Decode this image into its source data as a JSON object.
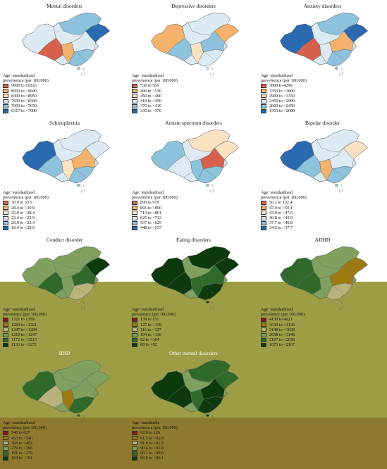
{
  "legend_title_line1": "Age−standardized",
  "legend_title_line2": "preveleence (per 100,000)",
  "panels": [
    {
      "title": "Mental disorders",
      "legend_title": [
        "Age−standardized",
        "preveleence (per 100,000)"
      ],
      "legend": [
        {
          "label": "9600 to 10226",
          "color": "#d7604d"
        },
        {
          "label": "8950 to <9600",
          "color": "#f4b16c"
        },
        {
          "label": "8300 to <8950",
          "color": "#fbe2c1"
        },
        {
          "label": "7650 to <8300",
          "color": "#dcebf3"
        },
        {
          "label": "7000 to <7650",
          "color": "#8cc2dc"
        },
        {
          "label": "6317 to <7000",
          "color": "#2a6ab0"
        }
      ]
    },
    {
      "title": "Depressive disorders",
      "legend_title": [
        "Age−standardized",
        "preveleence (per 100,000)"
      ],
      "legend": [
        {
          "label": "530 to 569",
          "color": "#d7604d"
        },
        {
          "label": "490 to <530",
          "color": "#f4b16c"
        },
        {
          "label": "450 to <490",
          "color": "#fbe2c1"
        },
        {
          "label": "410 to <450",
          "color": "#dcebf3"
        },
        {
          "label": "370 to <410",
          "color": "#8cc2dc"
        },
        {
          "label": "335 to <370",
          "color": "#2a6ab0"
        }
      ]
    },
    {
      "title": "Anxiety disorders",
      "legend_title": [
        "Age−standardized",
        "preveleence (per 100,000)"
      ],
      "legend": [
        {
          "label": "3800 to 4299",
          "color": "#d7604d"
        },
        {
          "label": "3350 to <3800",
          "color": "#f4b16c"
        },
        {
          "label": "2900 to <3350",
          "color": "#fbe2c1"
        },
        {
          "label": "2450 to <2900",
          "color": "#dcebf3"
        },
        {
          "label": "2000 to <2450",
          "color": "#8cc2dc"
        },
        {
          "label": "1553 to <2000",
          "color": "#2a6ab0"
        }
      ]
    },
    {
      "title": "Schizophrenia",
      "legend_title": [
        "Age−standardized",
        "preveleence (per 100,000)"
      ],
      "legend": [
        {
          "label": "30.9 to 33.5",
          "color": "#d7604d"
        },
        {
          "label": "28.4 to <30.9",
          "color": "#f4b16c"
        },
        {
          "label": "25.9 to <28.4",
          "color": "#fbe2c1"
        },
        {
          "label": "23.4 to <25.9",
          "color": "#dcebf3"
        },
        {
          "label": "20.9 to <23.4",
          "color": "#8cc2dc"
        },
        {
          "label": "18.4 to <20.9",
          "color": "#2a6ab0"
        }
      ]
    },
    {
      "title": "Autism spectrum disorders",
      "legend_title": [
        "Age−standardized",
        "preveleence (per 100,000)"
      ],
      "legend": [
        {
          "label": "890 to 979",
          "color": "#d7604d"
        },
        {
          "label": "801 to <890",
          "color": "#f4b16c"
        },
        {
          "label": "713 to <801",
          "color": "#fbe2c1"
        },
        {
          "label": "625 to <713",
          "color": "#dcebf3"
        },
        {
          "label": "537 to <625",
          "color": "#8cc2dc"
        },
        {
          "label": "448 to <537",
          "color": "#2a6ab0"
        }
      ]
    },
    {
      "title": "Bipolar disorder",
      "legend_title": [
        "Age−standardized",
        "preveleence (per 100,000)"
      ],
      "legend": [
        {
          "label": "50.1 to 132.4",
          "color": "#d7604d"
        },
        {
          "label": "47.0 to <50.1",
          "color": "#f4b16c"
        },
        {
          "label": "43.9 to <47.0",
          "color": "#fbe2c1"
        },
        {
          "label": "40.8 to <43.9",
          "color": "#dcebf3"
        },
        {
          "label": "37.7 to <40.8",
          "color": "#8cc2dc"
        },
        {
          "label": "34.6 to <37.7",
          "color": "#2a6ab0"
        }
      ]
    },
    {
      "title": "Conduct disorder",
      "legend_title": [
        "Age−standardized",
        "prevalence (per 100,000)"
      ],
      "legend": [
        {
          "label": "1321 to 1359",
          "color": "#8b1a10"
        },
        {
          "label": "1284 to <1321",
          "color": "#9c7a10"
        },
        {
          "label": "1247 to <1284",
          "color": "#b8b37a"
        },
        {
          "label": "1210 to <1247",
          "color": "#7fa05e"
        },
        {
          "label": "1172 to <1210",
          "color": "#2f6a2a"
        },
        {
          "label": "1133 to <1172",
          "color": "#0d3a0d"
        }
      ]
    },
    {
      "title": "Eating disorders",
      "legend_title": [
        "Age−standardized",
        "prevalence (per 100,000)"
      ],
      "legend": [
        {
          "label": "139 to 151",
          "color": "#8b1a10"
        },
        {
          "label": "127 to <139",
          "color": "#9c7a10"
        },
        {
          "label": "116 to <127",
          "color": "#b8b37a"
        },
        {
          "label": "104 to <116",
          "color": "#7fa05e"
        },
        {
          "label": "92 to <104",
          "color": "#2f6a2a"
        },
        {
          "label": "80 to <92",
          "color": "#0d3a0d"
        }
      ]
    },
    {
      "title": "ADHD",
      "legend_title": [
        "Age−standardized",
        "prevalence (per 100,000)"
      ],
      "legend": [
        {
          "label": "4130 to 4621",
          "color": "#8b1a10"
        },
        {
          "label": "3639 to <4130",
          "color": "#9c7a10"
        },
        {
          "label": "3148 to <3639",
          "color": "#b8b37a"
        },
        {
          "label": "2658 to <3148",
          "color": "#7fa05e"
        },
        {
          "label": "2167 to <2658",
          "color": "#2f6a2a"
        },
        {
          "label": "1673 to <2167",
          "color": "#0d3a0d"
        }
      ]
    },
    {
      "title": "IDID",
      "legend_title": [
        "Age−standardized",
        "prevalence (per 100,000)"
      ],
      "legend": [
        {
          "label": "540 to 627",
          "color": "#8b1a10"
        },
        {
          "label": "453 to <540",
          "color": "#9c7a10"
        },
        {
          "label": "366 to <453",
          "color": "#b8b37a"
        },
        {
          "label": "279 to <366",
          "color": "#7fa05e"
        },
        {
          "label": "191 to <279",
          "color": "#2f6a2a"
        },
        {
          "label": "104 to <191",
          "color": "#0d3a0d"
        }
      ]
    },
    {
      "title": "Other mental disorders",
      "legend_title": [
        "Age−standardiz",
        "preveleence (per 100,000)"
      ],
      "legend": [
        {
          "label": "92.0 to 120",
          "color": "#8b1a10"
        },
        {
          "label": "91.5 to <92.0",
          "color": "#9c7a10"
        },
        {
          "label": "91.0 to <91.5",
          "color": "#b8b37a"
        },
        {
          "label": "90.6 to <91.0",
          "color": "#7fa05e"
        },
        {
          "label": "90.1 to <90.6",
          "color": "#2f6a2a"
        },
        {
          "label": "89.6 to <90.1",
          "color": "#0d3a0d"
        }
      ]
    }
  ]
}
